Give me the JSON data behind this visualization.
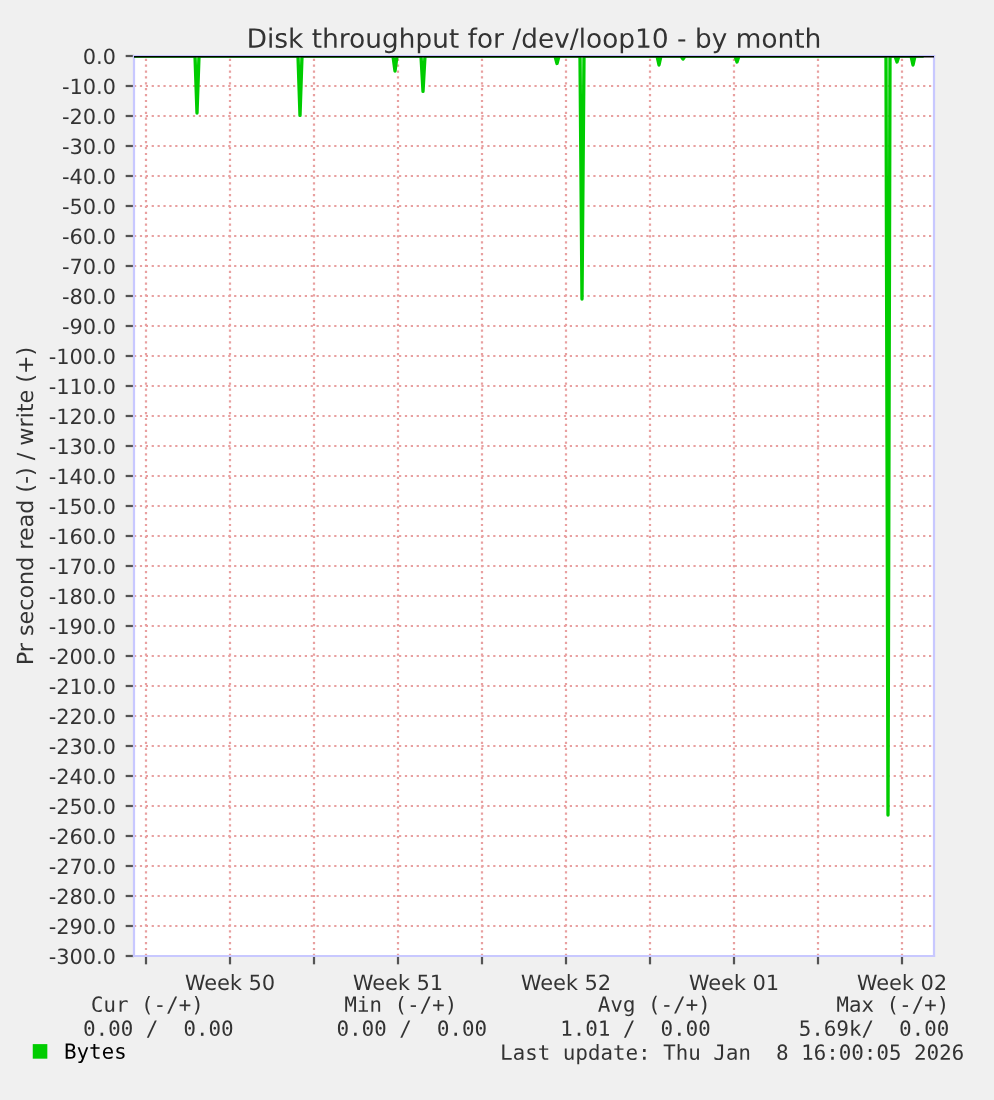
{
  "chart_data": {
    "type": "line",
    "title": "Disk throughput for /dev/loop10 - by month",
    "ylabel": "Pr second read (-) / write (+)",
    "xlim": [
      "2025-12-07T12:00",
      "2026-01-09T20:00"
    ],
    "ylim": [
      -300,
      0
    ],
    "xticks": [
      {
        "value": "2025-12-08T00:00",
        "label": null
      },
      {
        "value": "2025-12-11T12:00",
        "label": "Week 50"
      },
      {
        "value": "2025-12-15T00:00",
        "label": null
      },
      {
        "value": "2025-12-18T12:00",
        "label": "Week 51"
      },
      {
        "value": "2025-12-22T00:00",
        "label": null
      },
      {
        "value": "2025-12-25T12:00",
        "label": "Week 52"
      },
      {
        "value": "2025-12-29T00:00",
        "label": null
      },
      {
        "value": "2026-01-01T12:00",
        "label": "Week 01"
      },
      {
        "value": "2026-01-05T00:00",
        "label": null
      },
      {
        "value": "2026-01-08T12:00",
        "label": "Week 02"
      }
    ],
    "yticks": [
      {
        "value": 0,
        "label": "0.0"
      },
      {
        "value": -10,
        "label": "-10.0"
      },
      {
        "value": -20,
        "label": "-20.0"
      },
      {
        "value": -30,
        "label": "-30.0"
      },
      {
        "value": -40,
        "label": "-40.0"
      },
      {
        "value": -50,
        "label": "-50.0"
      },
      {
        "value": -60,
        "label": "-60.0"
      },
      {
        "value": -70,
        "label": "-70.0"
      },
      {
        "value": -80,
        "label": "-80.0"
      },
      {
        "value": -90,
        "label": "-90.0"
      },
      {
        "value": -100,
        "label": "-100.0"
      },
      {
        "value": -110,
        "label": "-110.0"
      },
      {
        "value": -120,
        "label": "-120.0"
      },
      {
        "value": -130,
        "label": "-130.0"
      },
      {
        "value": -140,
        "label": "-140.0"
      },
      {
        "value": -150,
        "label": "-150.0"
      },
      {
        "value": -160,
        "label": "-160.0"
      },
      {
        "value": -170,
        "label": "-170.0"
      },
      {
        "value": -180,
        "label": "-180.0"
      },
      {
        "value": -190,
        "label": "-190.0"
      },
      {
        "value": -200,
        "label": "-200.0"
      },
      {
        "value": -210,
        "label": "-210.0"
      },
      {
        "value": -220,
        "label": "-220.0"
      },
      {
        "value": -230,
        "label": "-230.0"
      },
      {
        "value": -240,
        "label": "-240.0"
      },
      {
        "value": -250,
        "label": "-250.0"
      },
      {
        "value": -260,
        "label": "-260.0"
      },
      {
        "value": -270,
        "label": "-270.0"
      },
      {
        "value": -280,
        "label": "-280.0"
      },
      {
        "value": -290,
        "label": "-290.0"
      },
      {
        "value": -300,
        "label": "-300.0"
      }
    ],
    "grid": true,
    "legend": "bottom",
    "marker": "none",
    "line_style": "solid",
    "ref_lines": [
      {
        "axis": "y",
        "value": 0,
        "color": "#000000"
      }
    ],
    "series": [
      {
        "name": "Bytes",
        "color": "#00cc00",
        "x": [
          "2025-12-07T12:00",
          "2025-12-10T01:00",
          "2025-12-10T03:00",
          "2025-12-10T05:00",
          "2025-12-14T08:00",
          "2025-12-14T10:00",
          "2025-12-14T12:00",
          "2025-12-18T07:00",
          "2025-12-18T09:00",
          "2025-12-18T11:00",
          "2025-12-19T11:00",
          "2025-12-19T13:00",
          "2025-12-19T15:00",
          "2025-12-25T01:00",
          "2025-12-25T03:00",
          "2025-12-25T05:00",
          "2025-12-26T02:00",
          "2025-12-26T04:00",
          "2025-12-26T06:00",
          "2025-12-29T07:00",
          "2025-12-29T09:00",
          "2025-12-29T11:00",
          "2025-12-30T07:00",
          "2025-12-30T09:00",
          "2025-12-30T11:00",
          "2026-01-01T13:00",
          "2026-01-01T15:00",
          "2026-01-01T17:00",
          "2026-01-07T20:00",
          "2026-01-07T22:00",
          "2026-01-08T00:00",
          "2026-01-08T05:00",
          "2026-01-08T07:00",
          "2026-01-08T09:00",
          "2026-01-08T21:00",
          "2026-01-08T23:00",
          "2026-01-09T01:00",
          "2026-01-09T08:00"
        ],
        "values": [
          0,
          0,
          -19,
          0,
          0,
          -19.8,
          0,
          0,
          -5,
          0,
          0,
          -11.8,
          0,
          0,
          -2.5,
          0,
          0,
          -81,
          0,
          0,
          -3,
          0,
          0,
          -1,
          0,
          0,
          -2,
          0,
          0,
          -253,
          0,
          0,
          -2,
          0,
          0,
          -3,
          0,
          0
        ]
      }
    ],
    "annotations": [
      "Cur (-/+)",
      "Min (-/+)",
      "Avg (-/+)",
      "Max (-/+)",
      "0.00 /  0.00",
      "0.00 /  0.00",
      "1.01 /  0.00",
      "5.69k/  0.00",
      "Last update: Thu Jan  8 16:00:05 2026"
    ]
  }
}
